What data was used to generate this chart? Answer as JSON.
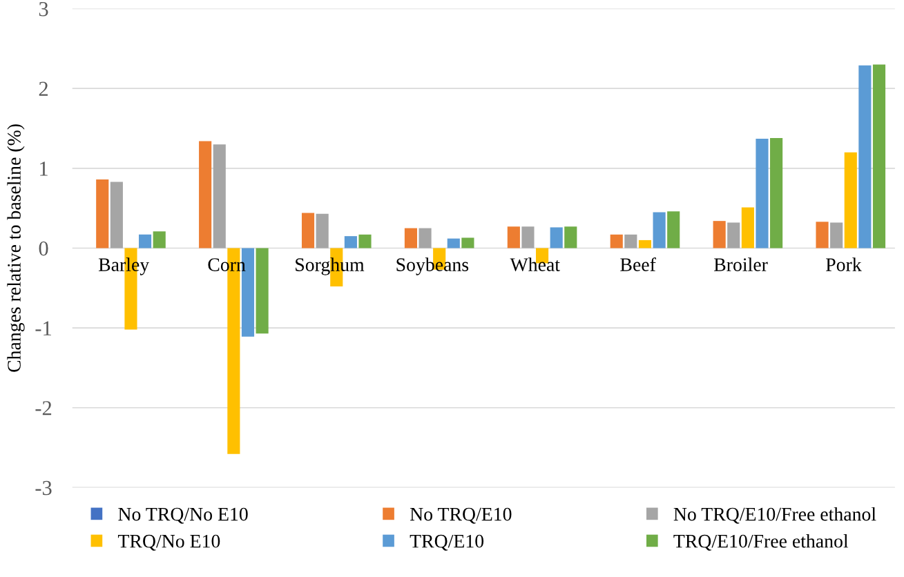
{
  "chart_data": {
    "type": "bar",
    "ylabel": "Changes relative to baseline (%)",
    "categories": [
      "Barley",
      "Corn",
      "Sorghum",
      "Soybeans",
      "Wheat",
      "Beef",
      "Broiler",
      "Pork"
    ],
    "series": [
      {
        "name": "No TRQ/No E10",
        "color": "#4472c4",
        "values": [
          0,
          0,
          0,
          0,
          0,
          0,
          0,
          0
        ]
      },
      {
        "name": "No TRQ/E10",
        "color": "#ed7d31",
        "values": [
          0.86,
          1.34,
          0.44,
          0.25,
          0.27,
          0.17,
          0.34,
          0.33
        ]
      },
      {
        "name": "No TRQ/E10/Free ethanol",
        "color": "#a5a5a5",
        "values": [
          0.83,
          1.3,
          0.43,
          0.25,
          0.27,
          0.17,
          0.32,
          0.32
        ]
      },
      {
        "name": "TRQ/No E10",
        "color": "#ffc000",
        "values": [
          -1.02,
          -2.58,
          -0.48,
          -0.27,
          -0.19,
          0.1,
          0.51,
          1.2
        ]
      },
      {
        "name": "TRQ/E10",
        "color": "#5b9bd5",
        "values": [
          0.17,
          -1.11,
          0.15,
          0.12,
          0.26,
          0.45,
          1.37,
          2.29
        ]
      },
      {
        "name": "TRQ/E10/Free ethanol",
        "color": "#70ad47",
        "values": [
          0.21,
          -1.07,
          0.17,
          0.13,
          0.27,
          0.46,
          1.38,
          2.3
        ]
      }
    ],
    "ylim": [
      -3,
      3
    ],
    "yticks": [
      -3,
      -2,
      -1,
      0,
      1,
      2,
      3
    ],
    "grid": "y",
    "legend": "bottom"
  }
}
